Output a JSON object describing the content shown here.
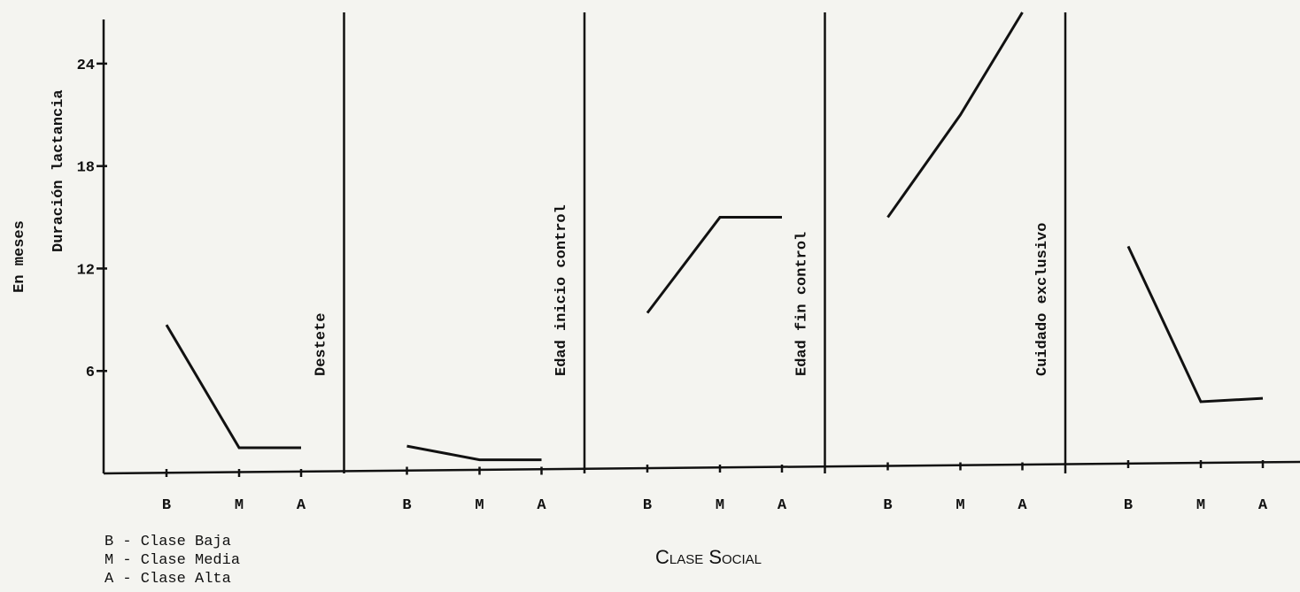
{
  "chart_data": {
    "type": "line",
    "ylabel": "En meses",
    "xlabel": "Clase Social",
    "categories": [
      "B",
      "M",
      "A"
    ],
    "series": [
      {
        "name": "Duración lactancia",
        "color": "#111111",
        "values": [
          8.7,
          1.5,
          1.5
        ]
      },
      {
        "name": "Destete",
        "color": "#111111",
        "values": [
          1.6,
          0.8,
          0.8
        ]
      },
      {
        "name": "Edad inicio control",
        "color": "#111111",
        "values": [
          9.4,
          15,
          15
        ]
      },
      {
        "name": "Edad fin control",
        "color": "#111111",
        "values": [
          15,
          21,
          27
        ]
      },
      {
        "name": "Cuidado exclusivo",
        "color": "#111111",
        "values": [
          13.3,
          4.2,
          4.4
        ]
      }
    ],
    "ylim": [
      0,
      27
    ],
    "yticks": [
      6,
      12,
      18,
      24
    ],
    "notes": [
      "B - Clase Baja",
      "M - Clase Media",
      "A - Clase Alta"
    ]
  }
}
